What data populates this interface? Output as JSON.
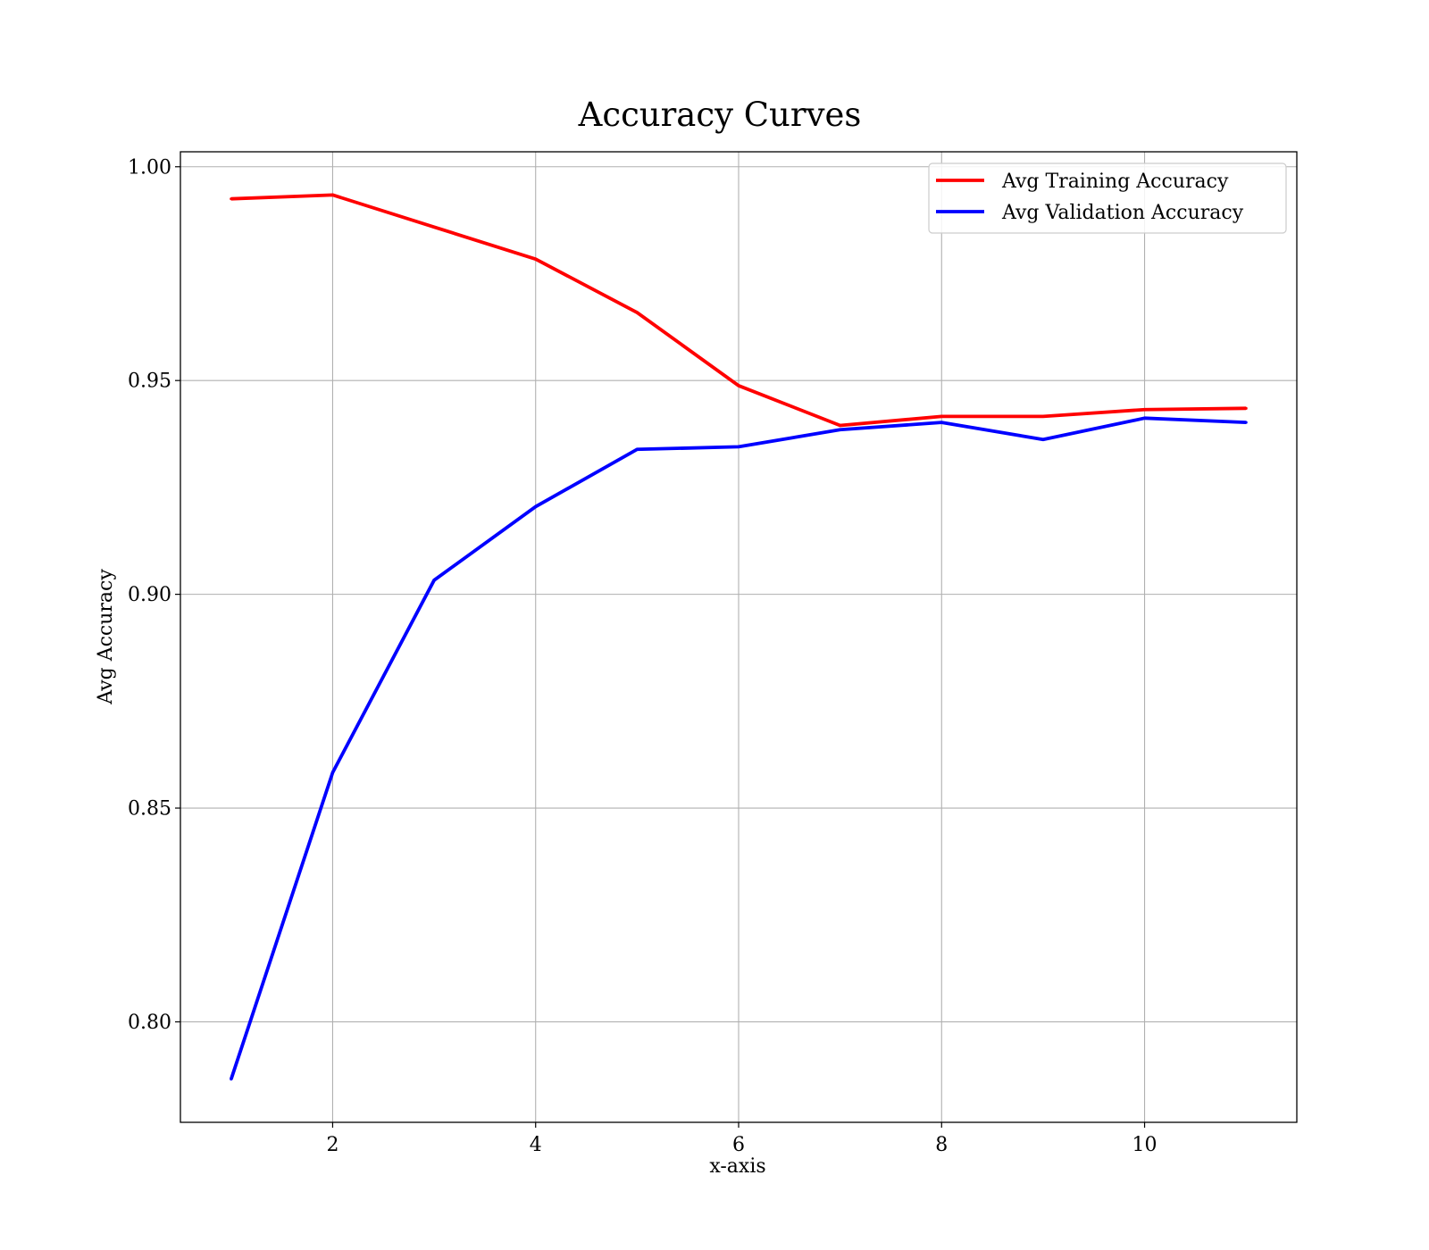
{
  "chart_data": {
    "type": "line",
    "title": "Accuracy Curves",
    "xlabel": "x-axis",
    "ylabel": "Avg Accuracy",
    "x": [
      1,
      2,
      3,
      4,
      5,
      6,
      7,
      8,
      9,
      10,
      11
    ],
    "xlim": [
      0.5,
      11.5
    ],
    "ylim": [
      0.7765,
      1.0035
    ],
    "xticks": [
      2,
      4,
      6,
      8,
      10
    ],
    "xtick_labels": [
      "2",
      "4",
      "6",
      "8",
      "10"
    ],
    "yticks": [
      0.8,
      0.85,
      0.9,
      0.95,
      1.0
    ],
    "ytick_labels": [
      "0.80",
      "0.85",
      "0.90",
      "0.95",
      "1.00"
    ],
    "grid": true,
    "legend_position": "top-right",
    "series": [
      {
        "name": "Avg Training Accuracy",
        "color": "#ff0000",
        "values": [
          0.9925,
          0.9934,
          0.9859,
          0.9784,
          0.9659,
          0.9488,
          0.9395,
          0.9416,
          0.9416,
          0.9432,
          0.9435
        ]
      },
      {
        "name": "Avg Validation Accuracy",
        "color": "#0000ff",
        "values": [
          0.7866,
          0.8583,
          0.9033,
          0.9205,
          0.9339,
          0.9345,
          0.9385,
          0.9402,
          0.9362,
          0.9412,
          0.9402
        ]
      }
    ]
  }
}
